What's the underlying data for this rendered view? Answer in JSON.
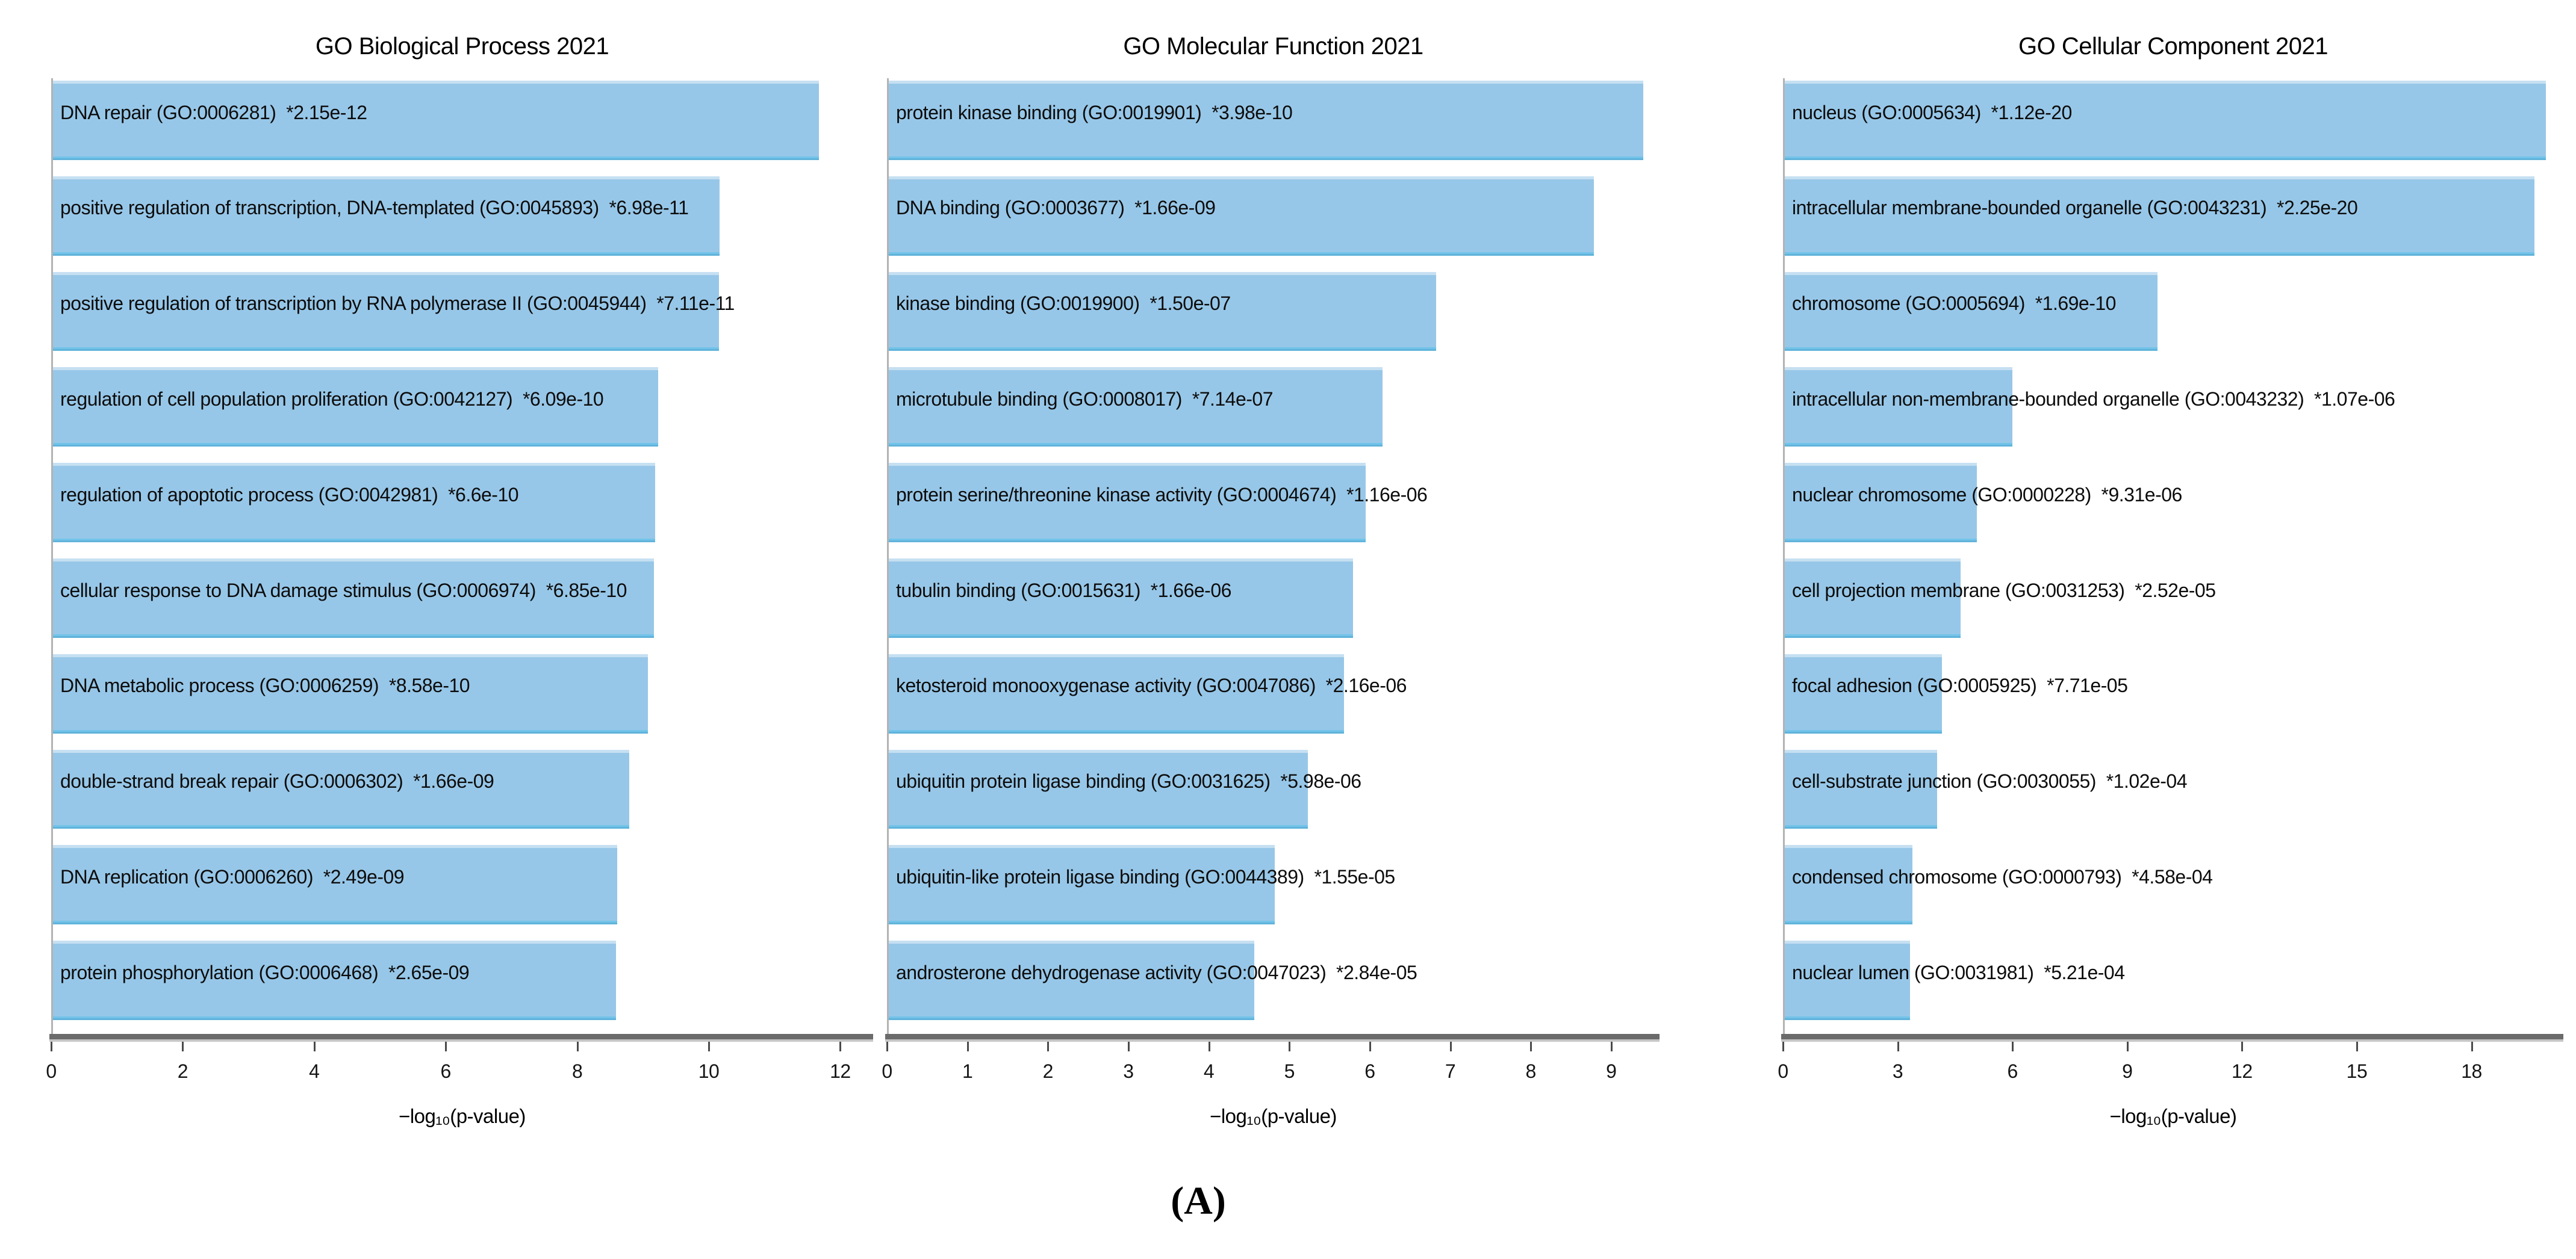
{
  "figure": {
    "caption": "(A)",
    "background": "#ffffff"
  },
  "colors": {
    "bar_fill": "#97c7e8",
    "bar_edge": "#7fb2d6",
    "axis_line": "#6b6b6b",
    "text": "#0c0c0c"
  },
  "chart_data": [
    {
      "type": "bar",
      "orientation": "horizontal",
      "title": "GO Biological Process 2021",
      "xlabel": "−log₁₀(p-value)",
      "xlim": [
        0,
        12.5
      ],
      "xticks": [
        0,
        2,
        4,
        6,
        8,
        10,
        12
      ],
      "grid": false,
      "legend": null,
      "bars": [
        {
          "label": "DNA repair (GO:0006281)  *2.15e-12",
          "p_value": "2.15e-12",
          "value": 11.67
        },
        {
          "label": "positive regulation of transcription, DNA-templated (GO:0045893)  *6.98e-11",
          "p_value": "6.98e-11",
          "value": 10.16
        },
        {
          "label": "positive regulation of transcription by RNA polymerase II (GO:0045944)  *7.11e-11",
          "p_value": "7.11e-11",
          "value": 10.15
        },
        {
          "label": "regulation of cell population proliferation (GO:0042127)  *6.09e-10",
          "p_value": "6.09e-10",
          "value": 9.22
        },
        {
          "label": "regulation of apoptotic process (GO:0042981)  *6.6e-10",
          "p_value": "6.6e-10",
          "value": 9.18
        },
        {
          "label": "cellular response to DNA damage stimulus (GO:0006974)  *6.85e-10",
          "p_value": "6.85e-10",
          "value": 9.16
        },
        {
          "label": "DNA metabolic process (GO:0006259)  *8.58e-10",
          "p_value": "8.58e-10",
          "value": 9.07
        },
        {
          "label": "double-strand break repair (GO:0006302)  *1.66e-09",
          "p_value": "1.66e-09",
          "value": 8.78
        },
        {
          "label": "DNA replication (GO:0006260)  *2.49e-09",
          "p_value": "2.49e-09",
          "value": 8.6
        },
        {
          "label": "protein phosphorylation (GO:0006468)  *2.65e-09",
          "p_value": "2.65e-09",
          "value": 8.58
        }
      ]
    },
    {
      "type": "bar",
      "orientation": "horizontal",
      "title": "GO Molecular Function 2021",
      "xlabel": "−log₁₀(p-value)",
      "xlim": [
        0,
        9.6
      ],
      "xticks": [
        0,
        1,
        2,
        3,
        4,
        5,
        6,
        7,
        8,
        9
      ],
      "grid": false,
      "legend": null,
      "bars": [
        {
          "label": "protein kinase binding (GO:0019901)  *3.98e-10",
          "p_value": "3.98e-10",
          "value": 9.4
        },
        {
          "label": "DNA binding (GO:0003677)  *1.66e-09",
          "p_value": "1.66e-09",
          "value": 8.78
        },
        {
          "label": "kinase binding (GO:0019900)  *1.50e-07",
          "p_value": "1.50e-07",
          "value": 6.82
        },
        {
          "label": "microtubule binding (GO:0008017)  *7.14e-07",
          "p_value": "7.14e-07",
          "value": 6.15
        },
        {
          "label": "protein serine/threonine kinase activity (GO:0004674)  *1.16e-06",
          "p_value": "1.16e-06",
          "value": 5.94
        },
        {
          "label": "tubulin binding (GO:0015631)  *1.66e-06",
          "p_value": "1.66e-06",
          "value": 5.78
        },
        {
          "label": "ketosteroid monooxygenase activity (GO:0047086)  *2.16e-06",
          "p_value": "2.16e-06",
          "value": 5.67
        },
        {
          "label": "ubiquitin protein ligase binding (GO:0031625)  *5.98e-06",
          "p_value": "5.98e-06",
          "value": 5.22
        },
        {
          "label": "ubiquitin-like protein ligase binding (GO:0044389)  *1.55e-05",
          "p_value": "1.55e-05",
          "value": 4.81
        },
        {
          "label": "androsterone dehydrogenase activity (GO:0047023)  *2.84e-05",
          "p_value": "2.84e-05",
          "value": 4.55
        }
      ]
    },
    {
      "type": "bar",
      "orientation": "horizontal",
      "title": "GO Cellular Component 2021",
      "xlabel": "−log₁₀(p-value)",
      "xlim": [
        0,
        20.4
      ],
      "xticks": [
        0,
        3,
        6,
        9,
        12,
        15,
        18
      ],
      "grid": false,
      "legend": null,
      "bars": [
        {
          "label": "nucleus (GO:0005634)  *1.12e-20",
          "p_value": "1.12e-20",
          "value": 19.95
        },
        {
          "label": "intracellular membrane-bounded organelle (GO:0043231)  *2.25e-20",
          "p_value": "2.25e-20",
          "value": 19.65
        },
        {
          "label": "chromosome (GO:0005694)  *1.69e-10",
          "p_value": "1.69e-10",
          "value": 9.77
        },
        {
          "label": "intracellular non-membrane-bounded organelle (GO:0043232)  *1.07e-06",
          "p_value": "1.07e-06",
          "value": 5.97
        },
        {
          "label": "nuclear chromosome (GO:0000228)  *9.31e-06",
          "p_value": "9.31e-06",
          "value": 5.03
        },
        {
          "label": "cell projection membrane (GO:0031253)  *2.52e-05",
          "p_value": "2.52e-05",
          "value": 4.6
        },
        {
          "label": "focal adhesion (GO:0005925)  *7.71e-05",
          "p_value": "7.71e-05",
          "value": 4.11
        },
        {
          "label": "cell-substrate junction (GO:0030055)  *1.02e-04",
          "p_value": "1.02e-04",
          "value": 3.99
        },
        {
          "label": "condensed chromosome (GO:0000793)  *4.58e-04",
          "p_value": "4.58e-04",
          "value": 3.34
        },
        {
          "label": "nuclear lumen (GO:0031981)  *5.21e-04",
          "p_value": "5.21e-04",
          "value": 3.28
        }
      ]
    }
  ]
}
